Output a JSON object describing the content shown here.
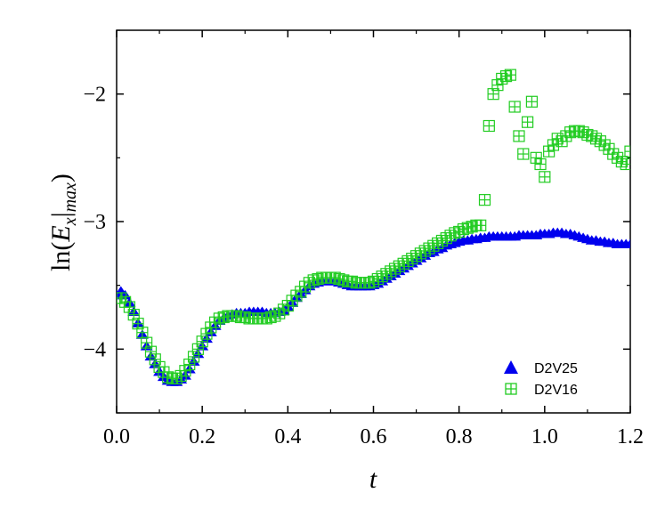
{
  "chart_data": {
    "type": "scatter",
    "xlabel": "t",
    "ylabel_prefix": "ln(",
    "ylabel_E": "E",
    "ylabel_x": "x",
    "ylabel_bar": "|",
    "ylabel_max": "max",
    "ylabel_suffix": ")",
    "xlim": [
      0.0,
      1.2
    ],
    "ylim": [
      -4.5,
      -1.5
    ],
    "xticks": [
      0.0,
      0.2,
      0.4,
      0.6,
      0.8,
      1.0,
      1.2
    ],
    "xtick_labels": [
      "0.0",
      "0.2",
      "0.4",
      "0.6",
      "0.8",
      "1.0",
      "1.2"
    ],
    "yticks": [
      -4,
      -3,
      -2
    ],
    "ytick_labels": [
      "−4",
      "−3",
      "−2"
    ],
    "legend_position": "bottom-right",
    "series": [
      {
        "name": "D2V25",
        "marker": "triangle",
        "color": "#0000ee",
        "x": [
          0.0,
          0.01,
          0.02,
          0.03,
          0.04,
          0.05,
          0.06,
          0.07,
          0.08,
          0.09,
          0.1,
          0.11,
          0.12,
          0.13,
          0.14,
          0.15,
          0.16,
          0.17,
          0.18,
          0.19,
          0.2,
          0.21,
          0.22,
          0.23,
          0.24,
          0.25,
          0.26,
          0.27,
          0.28,
          0.29,
          0.3,
          0.31,
          0.32,
          0.33,
          0.34,
          0.35,
          0.36,
          0.37,
          0.38,
          0.39,
          0.4,
          0.41,
          0.42,
          0.43,
          0.44,
          0.45,
          0.46,
          0.47,
          0.48,
          0.49,
          0.5,
          0.51,
          0.52,
          0.53,
          0.54,
          0.55,
          0.56,
          0.57,
          0.58,
          0.59,
          0.6,
          0.61,
          0.62,
          0.63,
          0.64,
          0.65,
          0.66,
          0.67,
          0.68,
          0.69,
          0.7,
          0.71,
          0.72,
          0.73,
          0.74,
          0.75,
          0.76,
          0.77,
          0.78,
          0.79,
          0.8,
          0.81,
          0.82,
          0.83,
          0.84,
          0.85,
          0.86,
          0.87,
          0.88,
          0.89,
          0.9,
          0.91,
          0.92,
          0.93,
          0.94,
          0.95,
          0.96,
          0.97,
          0.98,
          0.99,
          1.0,
          1.01,
          1.02,
          1.03,
          1.04,
          1.05,
          1.06,
          1.07,
          1.08,
          1.09,
          1.1,
          1.11,
          1.12,
          1.13,
          1.14,
          1.15,
          1.16,
          1.17,
          1.18,
          1.19,
          1.2
        ],
        "y": [
          -3.58,
          -3.55,
          -3.58,
          -3.64,
          -3.71,
          -3.8,
          -3.89,
          -3.98,
          -4.06,
          -4.12,
          -4.18,
          -4.22,
          -4.25,
          -4.26,
          -4.26,
          -4.24,
          -4.21,
          -4.16,
          -4.1,
          -4.04,
          -3.98,
          -3.92,
          -3.87,
          -3.82,
          -3.78,
          -3.76,
          -3.74,
          -3.73,
          -3.72,
          -3.72,
          -3.72,
          -3.71,
          -3.71,
          -3.71,
          -3.71,
          -3.72,
          -3.72,
          -3.72,
          -3.71,
          -3.7,
          -3.67,
          -3.64,
          -3.6,
          -3.57,
          -3.54,
          -3.51,
          -3.49,
          -3.48,
          -3.47,
          -3.47,
          -3.47,
          -3.47,
          -3.48,
          -3.49,
          -3.5,
          -3.51,
          -3.51,
          -3.51,
          -3.51,
          -3.51,
          -3.5,
          -3.49,
          -3.47,
          -3.45,
          -3.43,
          -3.41,
          -3.39,
          -3.37,
          -3.35,
          -3.33,
          -3.31,
          -3.29,
          -3.27,
          -3.25,
          -3.24,
          -3.22,
          -3.21,
          -3.19,
          -3.18,
          -3.17,
          -3.16,
          -3.15,
          -3.15,
          -3.14,
          -3.14,
          -3.13,
          -3.13,
          -3.12,
          -3.12,
          -3.12,
          -3.12,
          -3.12,
          -3.12,
          -3.12,
          -3.11,
          -3.11,
          -3.11,
          -3.11,
          -3.11,
          -3.1,
          -3.1,
          -3.1,
          -3.09,
          -3.09,
          -3.09,
          -3.1,
          -3.1,
          -3.11,
          -3.12,
          -3.13,
          -3.14,
          -3.15,
          -3.15,
          -3.16,
          -3.16,
          -3.17,
          -3.17,
          -3.18,
          -3.18,
          -3.18,
          -3.18
        ]
      },
      {
        "name": "D2V16",
        "marker": "square-cross",
        "color": "#22cc22",
        "x": [
          0.0,
          0.01,
          0.02,
          0.03,
          0.04,
          0.05,
          0.06,
          0.07,
          0.08,
          0.09,
          0.1,
          0.11,
          0.12,
          0.13,
          0.14,
          0.15,
          0.16,
          0.17,
          0.18,
          0.19,
          0.2,
          0.21,
          0.22,
          0.23,
          0.24,
          0.25,
          0.26,
          0.27,
          0.28,
          0.29,
          0.3,
          0.31,
          0.32,
          0.33,
          0.34,
          0.35,
          0.36,
          0.37,
          0.38,
          0.39,
          0.4,
          0.41,
          0.42,
          0.43,
          0.44,
          0.45,
          0.46,
          0.47,
          0.48,
          0.49,
          0.5,
          0.51,
          0.52,
          0.53,
          0.54,
          0.55,
          0.56,
          0.57,
          0.58,
          0.59,
          0.6,
          0.61,
          0.62,
          0.63,
          0.64,
          0.65,
          0.66,
          0.67,
          0.68,
          0.69,
          0.7,
          0.71,
          0.72,
          0.73,
          0.74,
          0.75,
          0.76,
          0.77,
          0.78,
          0.79,
          0.8,
          0.81,
          0.82,
          0.83,
          0.84,
          0.85,
          0.86,
          0.87,
          0.88,
          0.89,
          0.9,
          0.91,
          0.92,
          0.93,
          0.94,
          0.95,
          0.96,
          0.97,
          0.98,
          0.99,
          1.0,
          1.01,
          1.02,
          1.03,
          1.04,
          1.05,
          1.06,
          1.07,
          1.08,
          1.09,
          1.1,
          1.11,
          1.12,
          1.13,
          1.14,
          1.15,
          1.16,
          1.17,
          1.18,
          1.19,
          1.2
        ],
        "y": [
          -3.6,
          -3.6,
          -3.63,
          -3.67,
          -3.73,
          -3.8,
          -3.87,
          -3.95,
          -4.02,
          -4.08,
          -4.14,
          -4.18,
          -4.22,
          -4.23,
          -4.23,
          -4.21,
          -4.17,
          -4.12,
          -4.06,
          -4.0,
          -3.94,
          -3.88,
          -3.83,
          -3.79,
          -3.76,
          -3.75,
          -3.74,
          -3.74,
          -3.74,
          -3.75,
          -3.75,
          -3.76,
          -3.76,
          -3.76,
          -3.76,
          -3.76,
          -3.75,
          -3.74,
          -3.72,
          -3.69,
          -3.66,
          -3.62,
          -3.58,
          -3.55,
          -3.51,
          -3.48,
          -3.46,
          -3.45,
          -3.44,
          -3.44,
          -3.44,
          -3.44,
          -3.45,
          -3.46,
          -3.47,
          -3.47,
          -3.48,
          -3.48,
          -3.48,
          -3.48,
          -3.47,
          -3.45,
          -3.43,
          -3.41,
          -3.39,
          -3.37,
          -3.35,
          -3.33,
          -3.31,
          -3.29,
          -3.27,
          -3.25,
          -3.23,
          -3.21,
          -3.19,
          -3.17,
          -3.15,
          -3.13,
          -3.11,
          -3.09,
          -3.08,
          -3.06,
          -3.05,
          -3.04,
          -3.03,
          -3.03,
          -2.83,
          -2.25,
          -2.0,
          -1.93,
          -1.88,
          -1.86,
          -1.85,
          -2.1,
          -2.33,
          -2.47,
          -2.22,
          -2.06,
          -2.5,
          -2.55,
          -2.65,
          -2.45,
          -2.4,
          -2.35,
          -2.37,
          -2.33,
          -2.3,
          -2.29,
          -2.29,
          -2.3,
          -2.32,
          -2.33,
          -2.35,
          -2.37,
          -2.4,
          -2.43,
          -2.47,
          -2.5,
          -2.53,
          -2.55,
          -2.45
        ]
      }
    ]
  }
}
